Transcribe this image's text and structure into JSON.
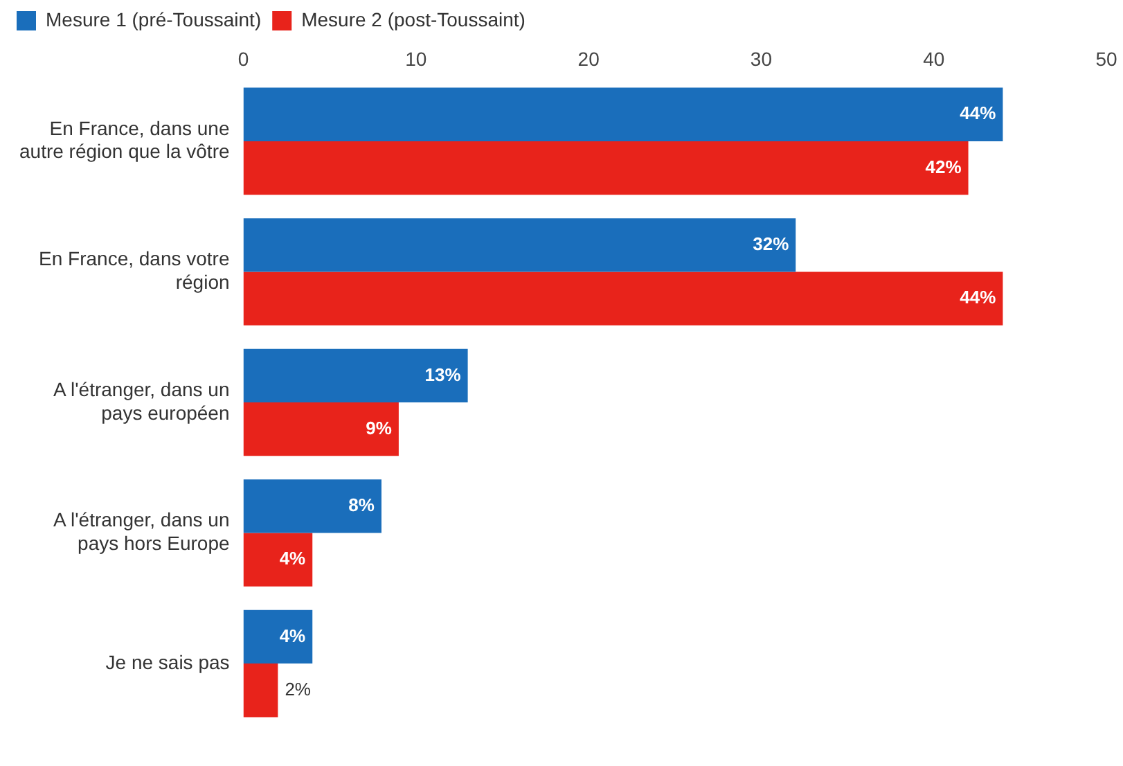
{
  "chart_data": {
    "type": "bar",
    "orientation": "horizontal",
    "categories": [
      "En France, dans une autre région que la vôtre",
      "En France, dans votre région",
      "A l'étranger, dans un pays européen",
      "A l'étranger, dans un pays hors Europe",
      "Je ne sais pas"
    ],
    "series": [
      {
        "name": "Mesure 1 (pré-Toussaint)",
        "color": "#1a6ebb",
        "values": [
          44,
          32,
          13,
          8,
          4
        ],
        "value_labels": [
          "44%",
          "32%",
          "13%",
          "8%",
          "4%"
        ]
      },
      {
        "name": "Mesure 2 (post-Toussaint)",
        "color": "#e8231b",
        "values": [
          42,
          44,
          9,
          4,
          2
        ],
        "value_labels": [
          "42%",
          "44%",
          "9%",
          "4%",
          "2%"
        ]
      }
    ],
    "xlim": [
      0,
      50
    ],
    "xticks": [
      0,
      10,
      20,
      30,
      40,
      50
    ],
    "grid": false,
    "legend": "top left"
  }
}
